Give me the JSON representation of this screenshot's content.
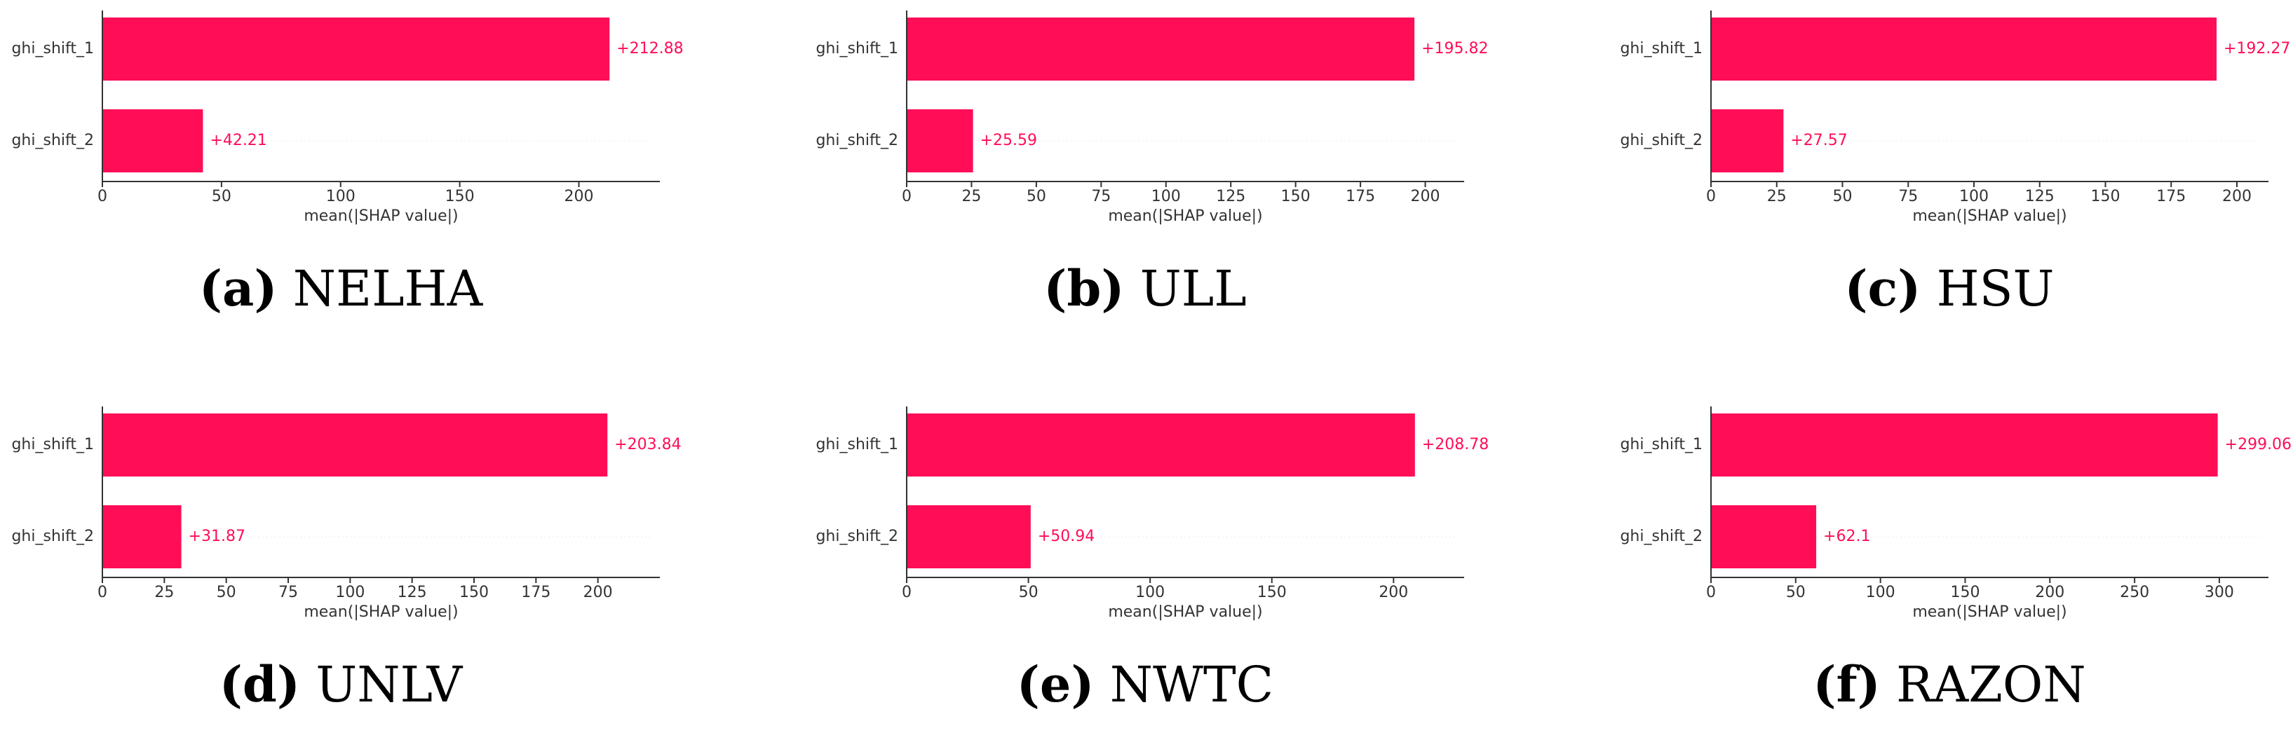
{
  "chart_data": [
    {
      "type": "bar",
      "caption_tag": "(a)",
      "caption": "NELHA",
      "categories": [
        "ghi_shift_1",
        "ghi_shift_2"
      ],
      "values": [
        212.88,
        42.21
      ],
      "value_labels": [
        "+212.88",
        "+42.21"
      ],
      "color": "#ff0d57",
      "xlabel": "mean(|SHAP value|)",
      "xlim": [
        0,
        234
      ],
      "xticks": [
        0,
        50,
        100,
        150,
        200
      ]
    },
    {
      "type": "bar",
      "caption_tag": "(b)",
      "caption": "ULL",
      "categories": [
        "ghi_shift_1",
        "ghi_shift_2"
      ],
      "values": [
        195.82,
        25.59
      ],
      "value_labels": [
        "+195.82",
        "+25.59"
      ],
      "color": "#ff0d57",
      "xlabel": "mean(|SHAP value|)",
      "xlim": [
        0,
        215
      ],
      "xticks": [
        0,
        25,
        50,
        75,
        100,
        125,
        150,
        175,
        200
      ]
    },
    {
      "type": "bar",
      "caption_tag": "(c)",
      "caption": "HSU",
      "categories": [
        "ghi_shift_1",
        "ghi_shift_2"
      ],
      "values": [
        192.27,
        27.57
      ],
      "value_labels": [
        "+192.27",
        "+27.57"
      ],
      "color": "#ff0d57",
      "xlabel": "mean(|SHAP value|)",
      "xlim": [
        0,
        212
      ],
      "xticks": [
        0,
        25,
        50,
        75,
        100,
        125,
        150,
        175,
        200
      ]
    },
    {
      "type": "bar",
      "caption_tag": "(d)",
      "caption": "UNLV",
      "categories": [
        "ghi_shift_1",
        "ghi_shift_2"
      ],
      "values": [
        203.84,
        31.87
      ],
      "value_labels": [
        "+203.84",
        "+31.87"
      ],
      "color": "#ff0d57",
      "xlabel": "mean(|SHAP value|)",
      "xlim": [
        0,
        225
      ],
      "xticks": [
        0,
        25,
        50,
        75,
        100,
        125,
        150,
        175,
        200
      ]
    },
    {
      "type": "bar",
      "caption_tag": "(e)",
      "caption": "NWTC",
      "categories": [
        "ghi_shift_1",
        "ghi_shift_2"
      ],
      "values": [
        208.78,
        50.94
      ],
      "value_labels": [
        "+208.78",
        "+50.94"
      ],
      "color": "#ff0d57",
      "xlabel": "mean(|SHAP value|)",
      "xlim": [
        0,
        229
      ],
      "xticks": [
        0,
        50,
        100,
        150,
        200
      ]
    },
    {
      "type": "bar",
      "caption_tag": "(f)",
      "caption": "RAZON",
      "categories": [
        "ghi_shift_1",
        "ghi_shift_2"
      ],
      "values": [
        299.06,
        62.1
      ],
      "value_labels": [
        "+299.06",
        "+62.1"
      ],
      "color": "#ff0d57",
      "xlabel": "mean(|SHAP value|)",
      "xlim": [
        0,
        329
      ],
      "xticks": [
        0,
        50,
        100,
        150,
        200,
        250,
        300
      ]
    }
  ]
}
